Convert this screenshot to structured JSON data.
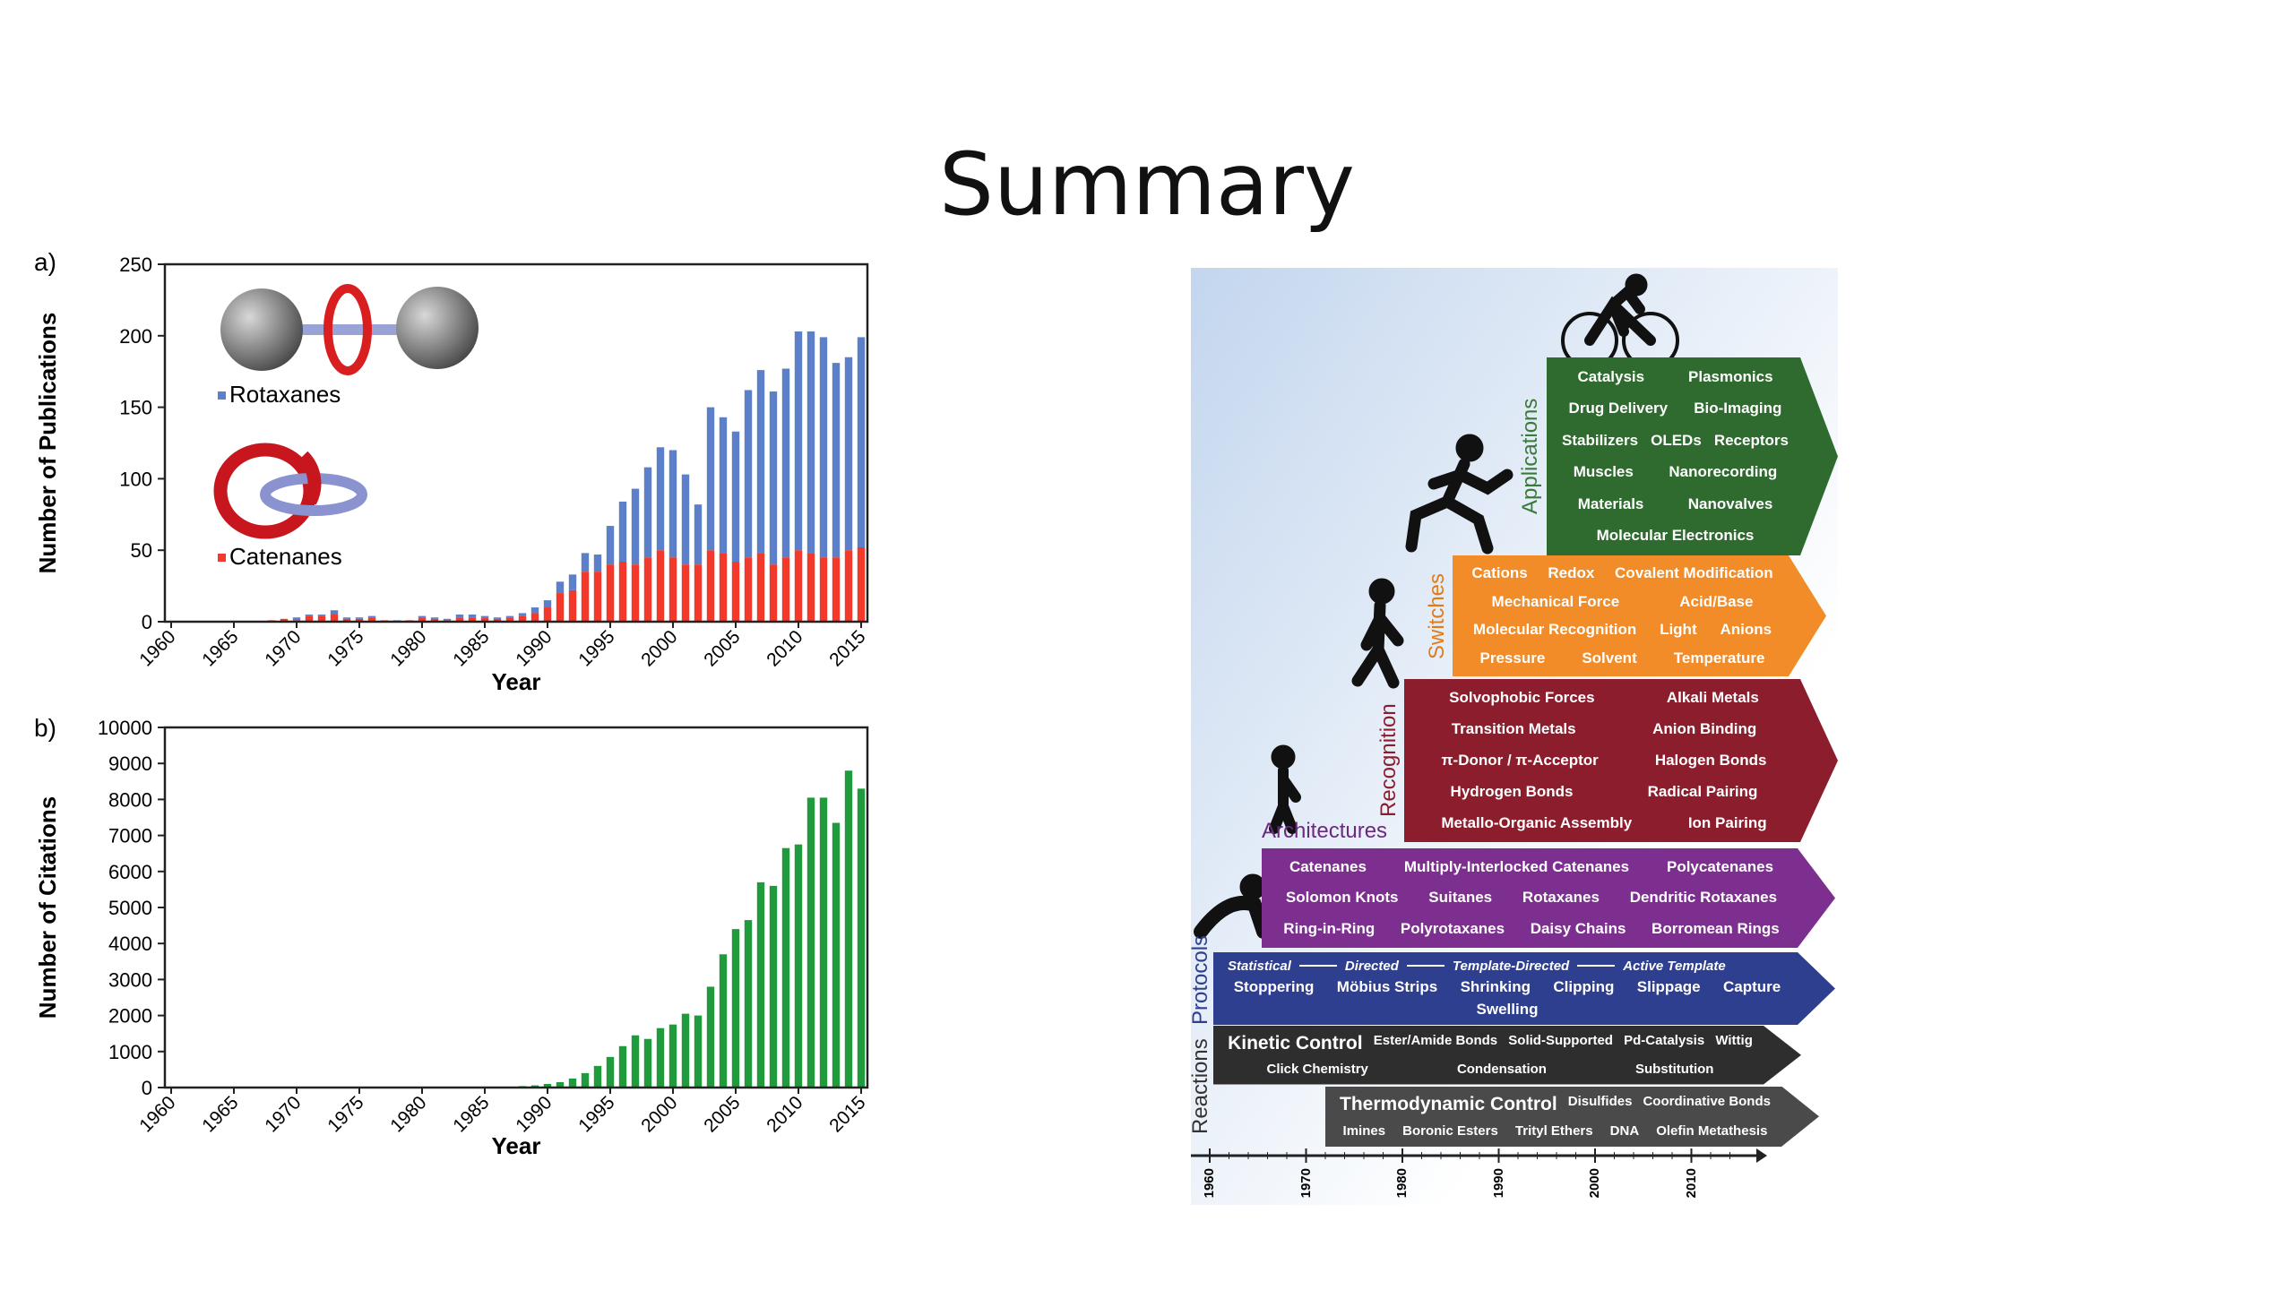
{
  "title": "Summary",
  "chart_data": [
    {
      "type": "bar",
      "stacked": true,
      "panel_label": "a)",
      "y_label": "Number of Publications",
      "x_label": "Year",
      "categories": [
        1960,
        null,
        null,
        null,
        null,
        1965,
        null,
        null,
        null,
        null,
        1970,
        null,
        null,
        null,
        null,
        1975,
        null,
        null,
        null,
        null,
        1980,
        null,
        null,
        null,
        null,
        1985,
        null,
        null,
        null,
        null,
        1990,
        null,
        null,
        null,
        null,
        1995,
        null,
        null,
        null,
        null,
        2000,
        null,
        null,
        null,
        null,
        2005,
        null,
        null,
        null,
        null,
        2010,
        null,
        null,
        null,
        null,
        2015
      ],
      "series": [
        {
          "name": "Catenanes",
          "color": "#f2392b",
          "values": [
            0,
            0,
            0,
            0,
            0,
            0,
            0,
            0,
            1,
            2,
            1,
            4,
            4,
            5,
            2,
            2,
            3,
            1,
            0,
            1,
            3,
            2,
            1,
            3,
            3,
            3,
            2,
            3,
            4,
            6,
            10,
            20,
            22,
            35,
            35,
            40,
            42,
            40,
            45,
            50,
            45,
            40,
            40,
            50,
            48,
            42,
            45,
            48,
            40,
            45,
            50,
            48,
            45,
            45,
            50,
            52
          ]
        },
        {
          "name": "Rotaxanes",
          "color": "#5b7fc8",
          "values": [
            0,
            0,
            0,
            0,
            0,
            0,
            0,
            0,
            0,
            0,
            2,
            1,
            1,
            3,
            1,
            1,
            1,
            0,
            1,
            0,
            1,
            1,
            1,
            2,
            2,
            1,
            1,
            1,
            2,
            4,
            5,
            8,
            11,
            13,
            12,
            27,
            42,
            53,
            63,
            72,
            75,
            63,
            42,
            100,
            95,
            91,
            117,
            128,
            121,
            132,
            153,
            155,
            154,
            136,
            135,
            147
          ]
        }
      ],
      "ylim": [
        0,
        250
      ],
      "yticks": [
        0,
        50,
        100,
        150,
        200,
        250
      ],
      "legend": true
    },
    {
      "type": "bar",
      "panel_label": "b)",
      "y_label": "Number of Citations",
      "x_label": "Year",
      "color": "#1f9a3c",
      "categories": [
        1960,
        null,
        null,
        null,
        null,
        1965,
        null,
        null,
        null,
        null,
        1970,
        null,
        null,
        null,
        null,
        1975,
        null,
        null,
        null,
        null,
        1980,
        null,
        null,
        null,
        null,
        1985,
        null,
        null,
        null,
        null,
        1990,
        null,
        null,
        null,
        null,
        1995,
        null,
        null,
        null,
        null,
        2000,
        null,
        null,
        null,
        null,
        2005,
        null,
        null,
        null,
        null,
        2010,
        null,
        null,
        null,
        null,
        2015
      ],
      "values": [
        0,
        0,
        0,
        0,
        0,
        0,
        0,
        0,
        0,
        0,
        0,
        0,
        0,
        0,
        0,
        0,
        0,
        0,
        0,
        0,
        0,
        0,
        0,
        0,
        0,
        0,
        0,
        20,
        40,
        60,
        100,
        150,
        250,
        400,
        600,
        850,
        1150,
        1450,
        1350,
        1650,
        1750,
        2050,
        2000,
        2800,
        3700,
        4400,
        4650,
        5700,
        5600,
        6650,
        6750,
        8050,
        8050,
        7350,
        8800,
        8300
      ],
      "ylim": [
        0,
        10000
      ],
      "yticks": [
        0,
        1000,
        2000,
        3000,
        4000,
        5000,
        6000,
        7000,
        8000,
        9000,
        10000
      ],
      "legend": false
    }
  ],
  "diagram": {
    "stages": [
      {
        "label": "Applications",
        "items": [
          "Catalysis",
          "Plasmonics",
          "Drug Delivery",
          "Bio-Imaging",
          "Stabilizers",
          "OLEDs",
          "Receptors",
          "Muscles",
          "Nanorecording",
          "Materials",
          "Nanovalves",
          "Molecular Electronics"
        ]
      },
      {
        "label": "Switches",
        "items": [
          "Cations",
          "Redox",
          "Covalent Modification",
          "Mechanical Force",
          "Acid/Base",
          "Molecular Recognition",
          "Light",
          "Anions",
          "Pressure",
          "Solvent",
          "Temperature"
        ]
      },
      {
        "label": "Recognition",
        "items": [
          "Solvophobic Forces",
          "Alkali Metals",
          "Transition Metals",
          "Anion Binding",
          "π-Donor / π-Acceptor",
          "Halogen Bonds",
          "Hydrogen Bonds",
          "Radical Pairing",
          "Metallo-Organic Assembly",
          "Ion Pairing"
        ]
      },
      {
        "label": "Architectures",
        "items": [
          "Catenanes",
          "Multiply-Interlocked Catenanes",
          "Polycatenanes",
          "Solomon Knots",
          "Suitanes",
          "Rotaxanes",
          "Dendritic Rotaxanes",
          "Ring-in-Ring",
          "Polyrotaxanes",
          "Daisy Chains",
          "Borromean Rings"
        ]
      },
      {
        "label": "Protocols",
        "sequence": [
          "Statistical",
          "Directed",
          "Template-Directed",
          "Active Template"
        ],
        "items": [
          "Stoppering",
          "Möbius Strips",
          "Shrinking",
          "Clipping",
          "Slippage",
          "Capture",
          "Swelling"
        ]
      },
      {
        "label": "Reactions",
        "groups": [
          {
            "label": "Kinetic Control",
            "items": [
              "Ester/Amide Bonds",
              "Solid-Supported",
              "Pd-Catalysis",
              "Wittig",
              "Click Chemistry",
              "Condensation",
              "Substitution"
            ]
          },
          {
            "label": "Thermodynamic Control",
            "items": [
              "Disulfides",
              "Coordinative Bonds",
              "Imines",
              "Boronic Esters",
              "Trityl Ethers",
              "DNA",
              "Olefin Metathesis"
            ]
          }
        ]
      }
    ],
    "years": [
      1960,
      1970,
      1980,
      1990,
      2000,
      2010
    ]
  }
}
